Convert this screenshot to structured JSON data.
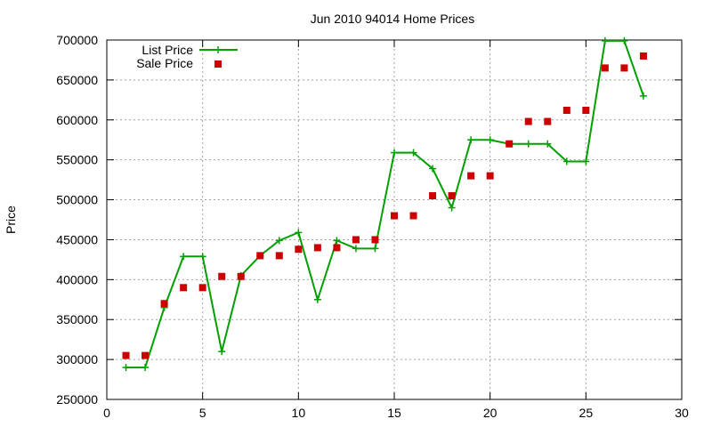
{
  "chart_data": {
    "type": "line",
    "title": "Jun 2010 94014 Home Prices",
    "xlabel": "",
    "ylabel": "Price",
    "xlim": [
      0,
      30
    ],
    "ylim": [
      250000,
      700000
    ],
    "x_ticks": [
      0,
      5,
      10,
      15,
      20,
      25,
      30
    ],
    "y_ticks": [
      250000,
      300000,
      350000,
      400000,
      450000,
      500000,
      550000,
      600000,
      650000,
      700000
    ],
    "grid": true,
    "legend_position": "top-left",
    "series": [
      {
        "name": "List Price",
        "style": "line-plus",
        "color": "#00a000",
        "x": [
          1,
          2,
          3,
          4,
          5,
          6,
          7,
          8,
          9,
          10,
          11,
          12,
          13,
          14,
          15,
          16,
          17,
          18,
          19,
          20,
          21,
          22,
          23,
          24,
          25,
          26,
          27,
          28
        ],
        "y": [
          290000,
          290000,
          365000,
          429000,
          429000,
          310000,
          405000,
          430000,
          449000,
          459000,
          375000,
          449000,
          439000,
          439000,
          559000,
          559000,
          539000,
          490000,
          575000,
          575000,
          570000,
          570000,
          570000,
          548000,
          548000,
          699000,
          699000,
          630000
        ]
      },
      {
        "name": "Sale Price",
        "style": "points-square",
        "color": "#cc0000",
        "x": [
          1,
          2,
          3,
          4,
          5,
          6,
          7,
          8,
          9,
          10,
          11,
          12,
          13,
          14,
          15,
          16,
          17,
          18,
          19,
          20,
          21,
          22,
          23,
          24,
          25,
          26,
          27,
          28
        ],
        "y": [
          305000,
          305000,
          370000,
          390000,
          390000,
          404000,
          404000,
          430000,
          430000,
          438000,
          440000,
          440000,
          450000,
          450000,
          480000,
          480000,
          505000,
          505000,
          530000,
          530000,
          570000,
          598000,
          598000,
          612000,
          612000,
          665000,
          665000,
          680000
        ]
      }
    ]
  }
}
